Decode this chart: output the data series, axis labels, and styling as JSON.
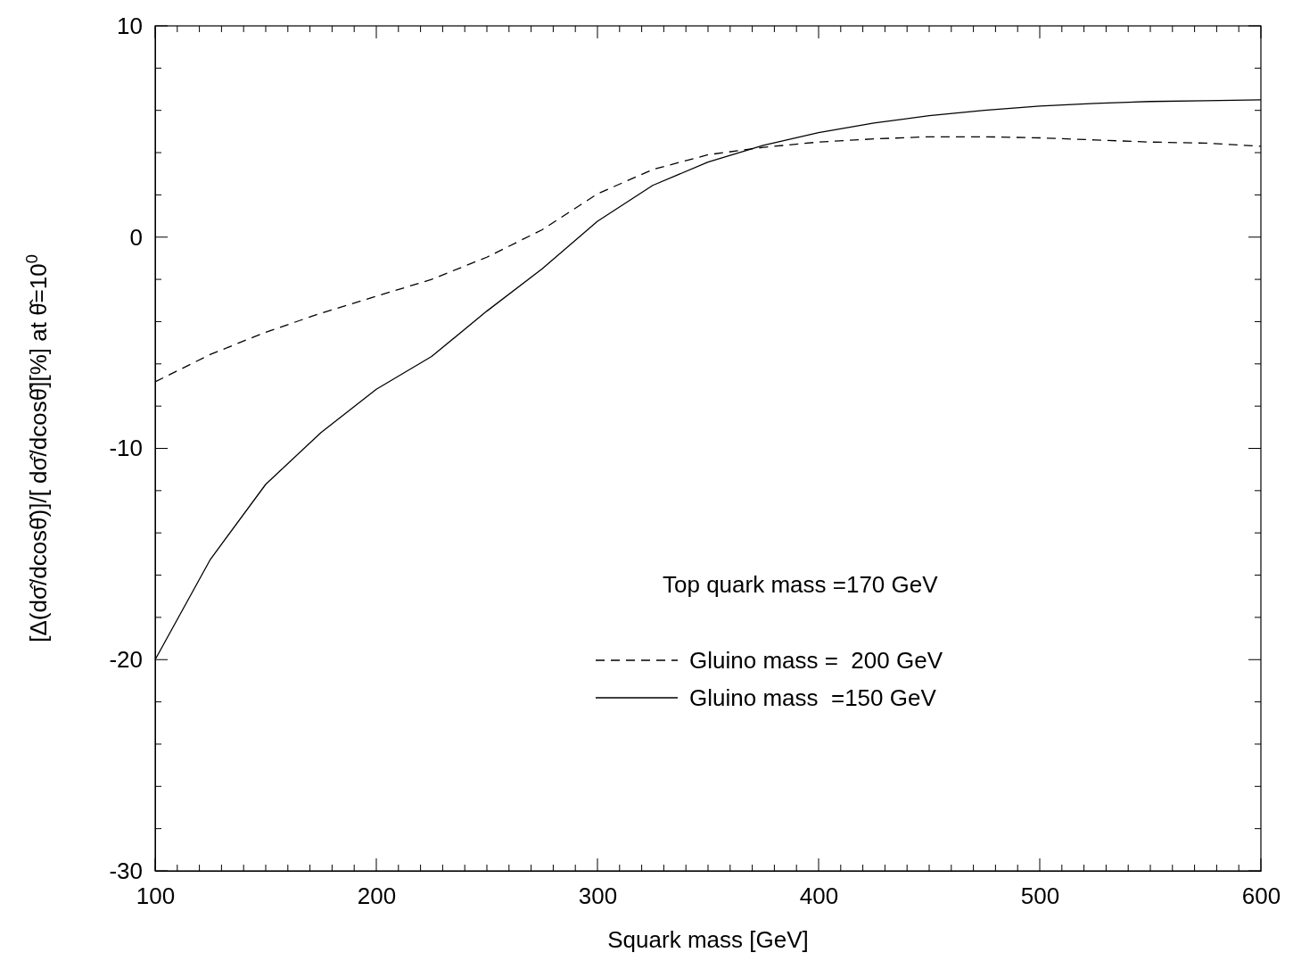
{
  "chart_data": {
    "type": "line",
    "xlabel": "Squark mass [GeV]",
    "ylabel": "[Δ(dσ̂/dcosθ̂)]/[ dσ̂/dcosθ̂][%] at θ̂=10$^{0}$",
    "legend_title": "Top quark mass =170 GeV",
    "legend": "bottom right",
    "grid": false,
    "marker": "none",
    "x": [
      100,
      125,
      150,
      175,
      200,
      225,
      250,
      275,
      300,
      325,
      350,
      375,
      400,
      425,
      450,
      475,
      500,
      525,
      550,
      575,
      600
    ],
    "xlim": [
      100,
      600
    ],
    "ylim": [
      -30,
      10
    ],
    "xticks": [
      100,
      {
        "value": 110,
        "label": null
      },
      {
        "value": 120,
        "label": null
      },
      {
        "value": 130,
        "label": null
      },
      {
        "value": 140,
        "label": null
      },
      {
        "value": 150,
        "label": null
      },
      {
        "value": 160,
        "label": null
      },
      {
        "value": 170,
        "label": null
      },
      {
        "value": 180,
        "label": null
      },
      {
        "value": 190,
        "label": null
      },
      200,
      {
        "value": 210,
        "label": null
      },
      {
        "value": 220,
        "label": null
      },
      {
        "value": 230,
        "label": null
      },
      {
        "value": 240,
        "label": null
      },
      {
        "value": 250,
        "label": null
      },
      {
        "value": 260,
        "label": null
      },
      {
        "value": 270,
        "label": null
      },
      {
        "value": 280,
        "label": null
      },
      {
        "value": 290,
        "label": null
      },
      300,
      {
        "value": 310,
        "label": null
      },
      {
        "value": 320,
        "label": null
      },
      {
        "value": 330,
        "label": null
      },
      {
        "value": 340,
        "label": null
      },
      {
        "value": 350,
        "label": null
      },
      {
        "value": 360,
        "label": null
      },
      {
        "value": 370,
        "label": null
      },
      {
        "value": 380,
        "label": null
      },
      {
        "value": 390,
        "label": null
      },
      400,
      {
        "value": 410,
        "label": null
      },
      {
        "value": 420,
        "label": null
      },
      {
        "value": 430,
        "label": null
      },
      {
        "value": 440,
        "label": null
      },
      {
        "value": 450,
        "label": null
      },
      {
        "value": 460,
        "label": null
      },
      {
        "value": 470,
        "label": null
      },
      {
        "value": 480,
        "label": null
      },
      {
        "value": 490,
        "label": null
      },
      500,
      {
        "value": 510,
        "label": null
      },
      {
        "value": 520,
        "label": null
      },
      {
        "value": 530,
        "label": null
      },
      {
        "value": 540,
        "label": null
      },
      {
        "value": 550,
        "label": null
      },
      {
        "value": 560,
        "label": null
      },
      {
        "value": 570,
        "label": null
      },
      {
        "value": 580,
        "label": null
      },
      {
        "value": 590,
        "label": null
      },
      600
    ],
    "yticks": [
      -30,
      {
        "value": -28,
        "label": null
      },
      {
        "value": -26,
        "label": null
      },
      {
        "value": -24,
        "label": null
      },
      {
        "value": -22,
        "label": null
      },
      -20,
      {
        "value": -18,
        "label": null
      },
      {
        "value": -16,
        "label": null
      },
      {
        "value": -14,
        "label": null
      },
      {
        "value": -12,
        "label": null
      },
      -10,
      {
        "value": -8,
        "label": null
      },
      {
        "value": -6,
        "label": null
      },
      {
        "value": -4,
        "label": null
      },
      {
        "value": -2,
        "label": null
      },
      0,
      {
        "value": 2,
        "label": null
      },
      {
        "value": 4,
        "label": null
      },
      {
        "value": 6,
        "label": null
      },
      {
        "value": 8,
        "label": null
      },
      10
    ],
    "series": [
      {
        "name": "Gluino mass =  200 GeV",
        "color": "#000000",
        "line_style": "dashed",
        "values": [
          -6.85,
          -5.55,
          -4.5,
          -3.6,
          -2.8,
          -2.0,
          -0.95,
          0.35,
          2.05,
          3.2,
          3.9,
          4.25,
          4.5,
          4.65,
          4.75,
          4.75,
          4.7,
          4.6,
          4.5,
          4.45,
          4.3
        ]
      },
      {
        "name": "Gluino mass  =150 GeV",
        "color": "#000000",
        "line_style": "solid",
        "values": [
          -20.0,
          -15.25,
          -11.7,
          -9.25,
          -7.2,
          -5.65,
          -3.5,
          -1.5,
          0.75,
          2.45,
          3.55,
          4.35,
          4.95,
          5.4,
          5.75,
          6.0,
          6.2,
          6.33,
          6.42,
          6.46,
          6.5
        ]
      }
    ]
  }
}
